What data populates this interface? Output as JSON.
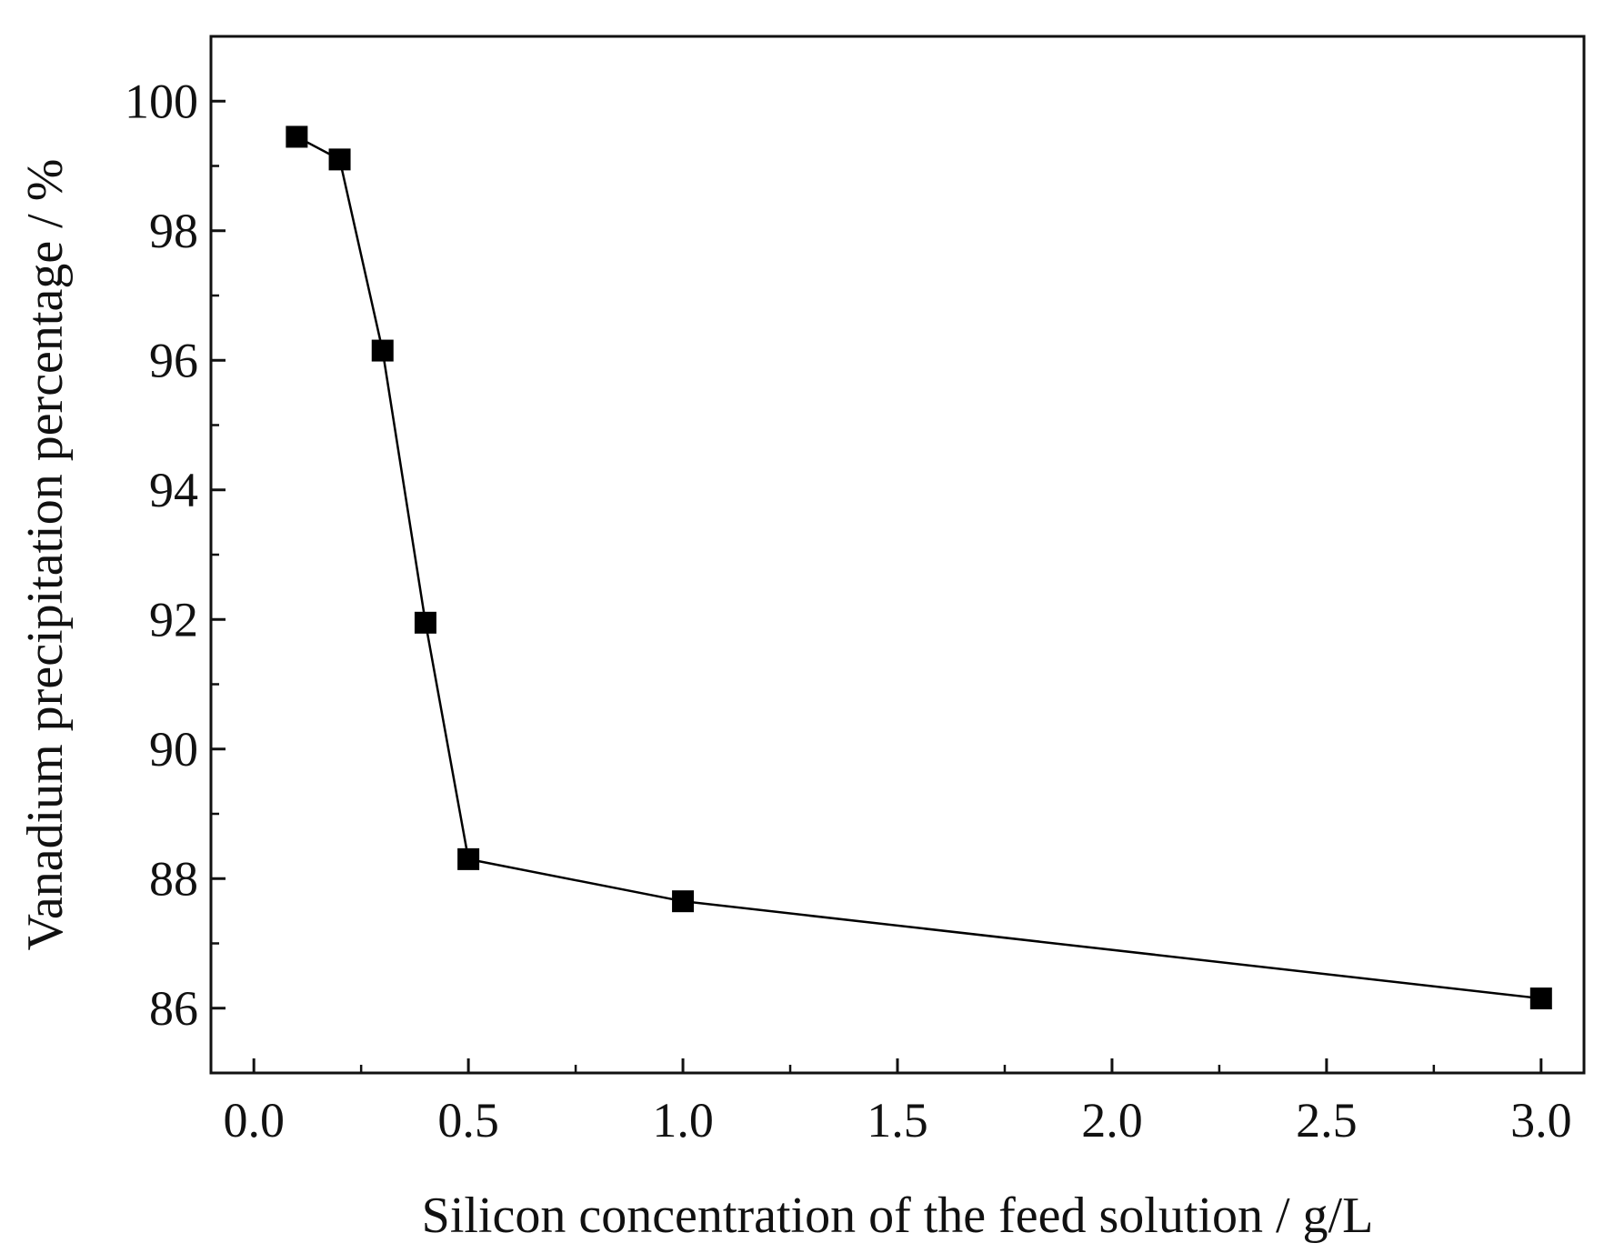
{
  "chart_data": {
    "type": "line",
    "title": "",
    "xlabel": "Silicon concentration of the feed solution / g/L",
    "ylabel": "Vanadium precipitation percentage / %",
    "xlim": [
      -0.1,
      3.1
    ],
    "ylim": [
      85,
      101
    ],
    "xticks": [
      0.0,
      0.5,
      1.0,
      1.5,
      2.0,
      2.5,
      3.0
    ],
    "xtick_labels": [
      "0.0",
      "0.5",
      "1.0",
      "1.5",
      "2.0",
      "2.5",
      "3.0"
    ],
    "yticks": [
      86,
      88,
      90,
      92,
      94,
      96,
      98,
      100
    ],
    "ytick_labels": [
      "86",
      "88",
      "90",
      "92",
      "94",
      "96",
      "98",
      "100"
    ],
    "x_minor_step": 0.25,
    "y_minor_step": 1,
    "grid": false,
    "legend": "none",
    "series": [
      {
        "name": "Vanadium precipitation percentage",
        "marker": "square",
        "color": "#000000",
        "x": [
          0.1,
          0.2,
          0.3,
          0.4,
          0.5,
          1.0,
          3.0
        ],
        "values": [
          99.45,
          99.1,
          96.15,
          91.95,
          88.3,
          87.65,
          86.15
        ]
      }
    ]
  }
}
